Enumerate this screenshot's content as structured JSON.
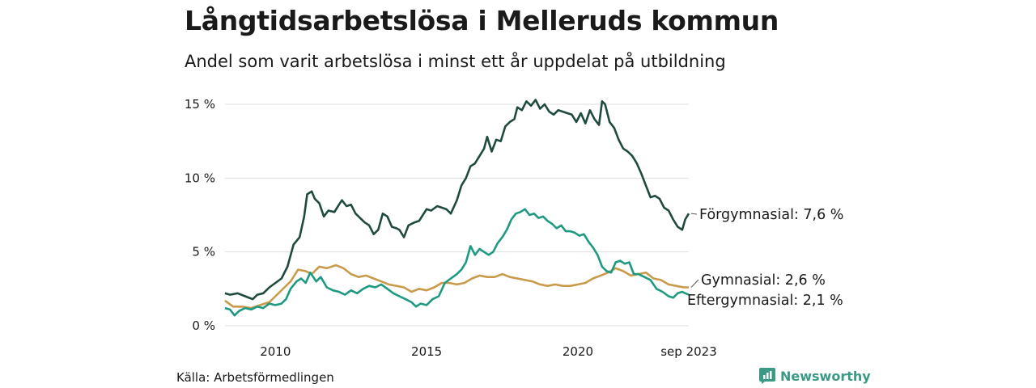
{
  "title": "Långtidsarbetslösa i Melleruds kommun",
  "subtitle": "Andel som varit arbetslösa i minst ett år uppdelat på utbildning",
  "source": "Källa: Arbetsförmedlingen",
  "brand": {
    "name": "Newsworthy",
    "icon": "bar-chart-icon",
    "color": "#3a9a86"
  },
  "chart_data": {
    "type": "line",
    "x_start": 2008.333,
    "x_end": 2023.667,
    "ylim": [
      0,
      15
    ],
    "y_ticks": [
      {
        "value": 0,
        "label": "0 %"
      },
      {
        "value": 5,
        "label": "5 %"
      },
      {
        "value": 10,
        "label": "10 %"
      },
      {
        "value": 15,
        "label": "15 %"
      }
    ],
    "x_ticks": [
      {
        "value": 2010,
        "label": "2010"
      },
      {
        "value": 2015,
        "label": "2015"
      },
      {
        "value": 2020,
        "label": "2020"
      },
      {
        "value": 2023.667,
        "label": "sep 2023"
      }
    ],
    "grid": true,
    "series": [
      {
        "name": "Förgymnasial",
        "label": "Förgymnasial: 7,6 %",
        "color": "#1f4a40",
        "points": [
          [
            2008.33,
            2.2
          ],
          [
            2008.5,
            2.1
          ],
          [
            2008.75,
            2.2
          ],
          [
            2009.0,
            2.0
          ],
          [
            2009.25,
            1.8
          ],
          [
            2009.4,
            2.1
          ],
          [
            2009.6,
            2.2
          ],
          [
            2009.8,
            2.6
          ],
          [
            2010.0,
            2.9
          ],
          [
            2010.2,
            3.2
          ],
          [
            2010.4,
            4.0
          ],
          [
            2010.6,
            5.5
          ],
          [
            2010.8,
            6.0
          ],
          [
            2010.95,
            7.4
          ],
          [
            2011.05,
            8.9
          ],
          [
            2011.2,
            9.1
          ],
          [
            2011.3,
            8.6
          ],
          [
            2011.45,
            8.3
          ],
          [
            2011.6,
            7.4
          ],
          [
            2011.75,
            7.8
          ],
          [
            2011.95,
            7.7
          ],
          [
            2012.1,
            8.2
          ],
          [
            2012.2,
            8.5
          ],
          [
            2012.35,
            8.1
          ],
          [
            2012.5,
            8.2
          ],
          [
            2012.65,
            7.6
          ],
          [
            2012.8,
            7.3
          ],
          [
            2012.95,
            7.0
          ],
          [
            2013.1,
            6.8
          ],
          [
            2013.25,
            6.2
          ],
          [
            2013.4,
            6.5
          ],
          [
            2013.55,
            7.6
          ],
          [
            2013.7,
            7.4
          ],
          [
            2013.85,
            6.7
          ],
          [
            2014.0,
            6.6
          ],
          [
            2014.1,
            6.5
          ],
          [
            2014.25,
            6.0
          ],
          [
            2014.4,
            6.8
          ],
          [
            2014.6,
            7.0
          ],
          [
            2014.75,
            7.1
          ],
          [
            2015.0,
            7.9
          ],
          [
            2015.15,
            7.8
          ],
          [
            2015.35,
            8.1
          ],
          [
            2015.5,
            8.0
          ],
          [
            2015.65,
            7.9
          ],
          [
            2015.8,
            7.6
          ],
          [
            2016.0,
            8.5
          ],
          [
            2016.15,
            9.5
          ],
          [
            2016.3,
            10.0
          ],
          [
            2016.45,
            10.8
          ],
          [
            2016.6,
            11.0
          ],
          [
            2016.75,
            11.5
          ],
          [
            2016.9,
            12.0
          ],
          [
            2017.0,
            12.8
          ],
          [
            2017.15,
            11.8
          ],
          [
            2017.3,
            12.6
          ],
          [
            2017.45,
            12.5
          ],
          [
            2017.6,
            13.5
          ],
          [
            2017.75,
            13.8
          ],
          [
            2017.9,
            14.0
          ],
          [
            2018.0,
            14.8
          ],
          [
            2018.15,
            14.6
          ],
          [
            2018.3,
            15.2
          ],
          [
            2018.45,
            14.9
          ],
          [
            2018.6,
            15.3
          ],
          [
            2018.75,
            14.7
          ],
          [
            2018.9,
            15.0
          ],
          [
            2019.05,
            14.5
          ],
          [
            2019.2,
            14.3
          ],
          [
            2019.35,
            14.6
          ],
          [
            2019.5,
            14.5
          ],
          [
            2019.65,
            14.4
          ],
          [
            2019.8,
            14.3
          ],
          [
            2019.95,
            13.8
          ],
          [
            2020.1,
            14.4
          ],
          [
            2020.25,
            13.7
          ],
          [
            2020.4,
            14.6
          ],
          [
            2020.55,
            14.0
          ],
          [
            2020.7,
            13.6
          ],
          [
            2020.8,
            15.2
          ],
          [
            2020.9,
            15.0
          ],
          [
            2021.05,
            13.8
          ],
          [
            2021.2,
            13.4
          ],
          [
            2021.35,
            12.6
          ],
          [
            2021.5,
            12.0
          ],
          [
            2021.65,
            11.8
          ],
          [
            2021.8,
            11.5
          ],
          [
            2021.95,
            11.0
          ],
          [
            2022.1,
            10.3
          ],
          [
            2022.25,
            9.5
          ],
          [
            2022.4,
            8.7
          ],
          [
            2022.55,
            8.8
          ],
          [
            2022.7,
            8.6
          ],
          [
            2022.85,
            8.0
          ],
          [
            2023.0,
            7.8
          ],
          [
            2023.15,
            7.2
          ],
          [
            2023.3,
            6.7
          ],
          [
            2023.45,
            6.5
          ],
          [
            2023.55,
            7.2
          ],
          [
            2023.667,
            7.6
          ]
        ]
      },
      {
        "name": "Gymnasial",
        "label": "Gymnasial: 2,6 %",
        "color": "#c99a4a",
        "points": [
          [
            2008.33,
            1.7
          ],
          [
            2008.6,
            1.3
          ],
          [
            2008.9,
            1.3
          ],
          [
            2009.2,
            1.2
          ],
          [
            2009.5,
            1.4
          ],
          [
            2009.8,
            1.6
          ],
          [
            2010.0,
            2.0
          ],
          [
            2010.3,
            2.6
          ],
          [
            2010.5,
            3.0
          ],
          [
            2010.75,
            3.8
          ],
          [
            2011.0,
            3.7
          ],
          [
            2011.2,
            3.5
          ],
          [
            2011.45,
            4.0
          ],
          [
            2011.7,
            3.9
          ],
          [
            2012.0,
            4.1
          ],
          [
            2012.25,
            3.9
          ],
          [
            2012.5,
            3.5
          ],
          [
            2012.75,
            3.3
          ],
          [
            2013.0,
            3.4
          ],
          [
            2013.25,
            3.2
          ],
          [
            2013.5,
            3.0
          ],
          [
            2013.75,
            2.8
          ],
          [
            2014.0,
            2.7
          ],
          [
            2014.25,
            2.6
          ],
          [
            2014.5,
            2.3
          ],
          [
            2014.75,
            2.5
          ],
          [
            2015.0,
            2.4
          ],
          [
            2015.25,
            2.6
          ],
          [
            2015.5,
            2.9
          ],
          [
            2015.75,
            2.9
          ],
          [
            2016.0,
            2.8
          ],
          [
            2016.25,
            2.9
          ],
          [
            2016.5,
            3.2
          ],
          [
            2016.75,
            3.4
          ],
          [
            2017.0,
            3.3
          ],
          [
            2017.25,
            3.3
          ],
          [
            2017.5,
            3.5
          ],
          [
            2017.75,
            3.3
          ],
          [
            2018.0,
            3.2
          ],
          [
            2018.25,
            3.1
          ],
          [
            2018.5,
            3.0
          ],
          [
            2018.75,
            2.8
          ],
          [
            2019.0,
            2.7
          ],
          [
            2019.25,
            2.8
          ],
          [
            2019.5,
            2.7
          ],
          [
            2019.75,
            2.7
          ],
          [
            2020.0,
            2.8
          ],
          [
            2020.25,
            2.9
          ],
          [
            2020.5,
            3.2
          ],
          [
            2020.75,
            3.4
          ],
          [
            2021.0,
            3.6
          ],
          [
            2021.25,
            3.9
          ],
          [
            2021.5,
            3.7
          ],
          [
            2021.75,
            3.4
          ],
          [
            2022.0,
            3.5
          ],
          [
            2022.25,
            3.6
          ],
          [
            2022.5,
            3.2
          ],
          [
            2022.75,
            3.1
          ],
          [
            2023.0,
            2.8
          ],
          [
            2023.25,
            2.7
          ],
          [
            2023.5,
            2.6
          ],
          [
            2023.667,
            2.6
          ]
        ]
      },
      {
        "name": "Eftergymnasial",
        "label": "Eftergymnasial: 2,1 %",
        "color": "#1f9a82",
        "points": [
          [
            2008.33,
            1.2
          ],
          [
            2008.5,
            1.1
          ],
          [
            2008.65,
            0.7
          ],
          [
            2008.8,
            1.0
          ],
          [
            2009.0,
            1.2
          ],
          [
            2009.2,
            1.1
          ],
          [
            2009.4,
            1.3
          ],
          [
            2009.6,
            1.2
          ],
          [
            2009.8,
            1.5
          ],
          [
            2010.0,
            1.4
          ],
          [
            2010.2,
            1.5
          ],
          [
            2010.35,
            1.8
          ],
          [
            2010.5,
            2.5
          ],
          [
            2010.7,
            3.0
          ],
          [
            2010.85,
            3.2
          ],
          [
            2011.0,
            2.9
          ],
          [
            2011.15,
            3.6
          ],
          [
            2011.35,
            3.0
          ],
          [
            2011.5,
            3.3
          ],
          [
            2011.7,
            2.6
          ],
          [
            2011.9,
            2.4
          ],
          [
            2012.1,
            2.3
          ],
          [
            2012.3,
            2.1
          ],
          [
            2012.5,
            2.4
          ],
          [
            2012.7,
            2.2
          ],
          [
            2012.9,
            2.5
          ],
          [
            2013.1,
            2.7
          ],
          [
            2013.3,
            2.6
          ],
          [
            2013.5,
            2.8
          ],
          [
            2013.7,
            2.5
          ],
          [
            2013.9,
            2.2
          ],
          [
            2014.1,
            2.0
          ],
          [
            2014.3,
            1.8
          ],
          [
            2014.5,
            1.6
          ],
          [
            2014.65,
            1.3
          ],
          [
            2014.8,
            1.5
          ],
          [
            2015.0,
            1.4
          ],
          [
            2015.2,
            1.8
          ],
          [
            2015.4,
            2.0
          ],
          [
            2015.6,
            2.9
          ],
          [
            2015.8,
            3.2
          ],
          [
            2016.0,
            3.5
          ],
          [
            2016.15,
            3.8
          ],
          [
            2016.3,
            4.3
          ],
          [
            2016.45,
            5.4
          ],
          [
            2016.6,
            4.8
          ],
          [
            2016.75,
            5.2
          ],
          [
            2016.9,
            5.0
          ],
          [
            2017.05,
            4.8
          ],
          [
            2017.2,
            5.0
          ],
          [
            2017.35,
            5.6
          ],
          [
            2017.5,
            6.0
          ],
          [
            2017.65,
            6.5
          ],
          [
            2017.8,
            7.2
          ],
          [
            2017.95,
            7.6
          ],
          [
            2018.1,
            7.7
          ],
          [
            2018.25,
            7.9
          ],
          [
            2018.4,
            7.5
          ],
          [
            2018.55,
            7.6
          ],
          [
            2018.7,
            7.3
          ],
          [
            2018.85,
            7.4
          ],
          [
            2019.0,
            7.1
          ],
          [
            2019.15,
            6.9
          ],
          [
            2019.3,
            6.6
          ],
          [
            2019.45,
            6.8
          ],
          [
            2019.6,
            6.4
          ],
          [
            2019.75,
            6.4
          ],
          [
            2019.9,
            6.3
          ],
          [
            2020.05,
            6.1
          ],
          [
            2020.2,
            6.2
          ],
          [
            2020.35,
            5.7
          ],
          [
            2020.5,
            5.3
          ],
          [
            2020.65,
            4.8
          ],
          [
            2020.8,
            4.0
          ],
          [
            2020.95,
            3.7
          ],
          [
            2021.1,
            3.6
          ],
          [
            2021.25,
            4.3
          ],
          [
            2021.4,
            4.4
          ],
          [
            2021.55,
            4.2
          ],
          [
            2021.7,
            4.3
          ],
          [
            2021.85,
            3.5
          ],
          [
            2022.0,
            3.5
          ],
          [
            2022.2,
            3.3
          ],
          [
            2022.4,
            3.1
          ],
          [
            2022.6,
            2.5
          ],
          [
            2022.8,
            2.3
          ],
          [
            2023.0,
            2.0
          ],
          [
            2023.15,
            1.9
          ],
          [
            2023.3,
            2.2
          ],
          [
            2023.45,
            2.3
          ],
          [
            2023.55,
            2.2
          ],
          [
            2023.667,
            2.1
          ]
        ]
      }
    ]
  }
}
